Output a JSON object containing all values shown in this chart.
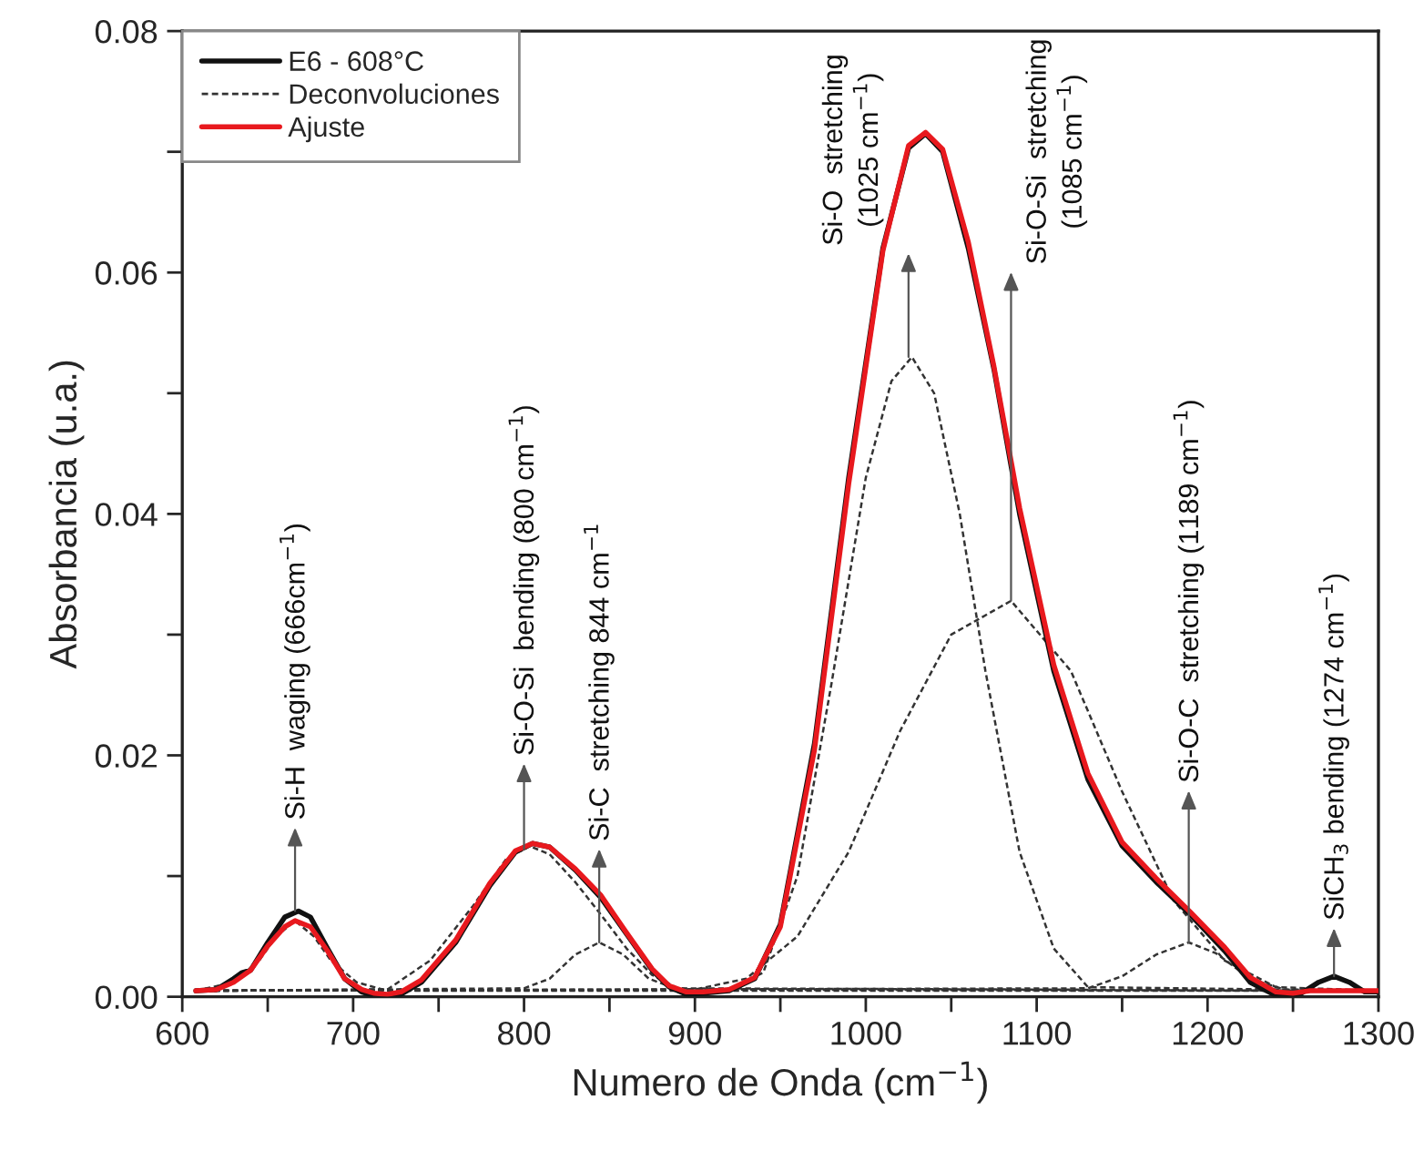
{
  "chart_data": {
    "type": "line",
    "xlabel": "Numero de Onda (cm$^{−1}$)",
    "ylabel": "Absorbancia (u.a.)",
    "xlim": [
      600,
      1300
    ],
    "ylim": [
      0,
      0.08
    ],
    "xticks": [
      600,
      {
        "value": 650,
        "label": null
      },
      700,
      {
        "value": 750,
        "label": null
      },
      800,
      {
        "value": 850,
        "label": null
      },
      900,
      {
        "value": 950,
        "label": null
      },
      1000,
      {
        "value": 1050,
        "label": null
      },
      1100,
      {
        "value": 1150,
        "label": null
      },
      1200,
      {
        "value": 1250,
        "label": null
      },
      1300
    ],
    "yticks": [
      {
        "value": 0,
        "label": "0.00"
      },
      {
        "value": 0.01,
        "label": null
      },
      {
        "value": 0.02,
        "label": "0.02"
      },
      {
        "value": 0.03,
        "label": null
      },
      {
        "value": 0.04,
        "label": "0.04"
      },
      {
        "value": 0.05,
        "label": null
      },
      {
        "value": 0.06,
        "label": "0.06"
      },
      {
        "value": 0.07,
        "label": null
      },
      {
        "value": 0.08,
        "label": "0.08"
      }
    ],
    "grid": false,
    "legend": "top left",
    "series": [
      {
        "name": "E6 - 608°C",
        "color": "#111111",
        "line_style": "solid",
        "x": [
          608,
          620,
          630,
          635,
          640,
          650,
          660,
          668,
          675,
          685,
          695,
          705,
          712,
          720,
          728,
          740,
          760,
          780,
          795,
          805,
          815,
          830,
          845,
          860,
          875,
          885,
          895,
          905,
          920,
          935,
          950,
          970,
          990,
          1010,
          1025,
          1035,
          1045,
          1060,
          1075,
          1090,
          1110,
          1130,
          1150,
          1170,
          1190,
          1210,
          1225,
          1240,
          1247,
          1255,
          1265,
          1274,
          1283,
          1292,
          1300
        ],
        "values": [
          0.0005,
          0.0006,
          0.0015,
          0.002,
          0.0022,
          0.0045,
          0.0066,
          0.0071,
          0.0066,
          0.004,
          0.0015,
          0.0004,
          0.0001,
          0.0,
          0.0002,
          0.0012,
          0.0045,
          0.0092,
          0.012,
          0.0127,
          0.0124,
          0.0105,
          0.0082,
          0.0052,
          0.0022,
          0.0008,
          0.0002,
          0.0003,
          0.0005,
          0.0015,
          0.006,
          0.021,
          0.043,
          0.062,
          0.0703,
          0.0715,
          0.07,
          0.062,
          0.052,
          0.04,
          0.027,
          0.018,
          0.0125,
          0.0095,
          0.0068,
          0.0038,
          0.0012,
          0.0001,
          0.0,
          0.0003,
          0.0012,
          0.0017,
          0.0012,
          0.0004,
          0.0004
        ]
      },
      {
        "name": "Deconvoluciones",
        "color": "#333333",
        "line_style": "dashed",
        "x": [
          608,
          630,
          645,
          655,
          666,
          677,
          687,
          702,
          720,
          1300
        ],
        "values": [
          0.0005,
          0.0012,
          0.003,
          0.005,
          0.0063,
          0.005,
          0.003,
          0.0012,
          0.0005,
          0.0005
        ]
      },
      {
        "color": "#333333",
        "line_style": "dashed",
        "x": [
          608,
          720,
          745,
          770,
          790,
          800,
          803,
          815,
          830,
          845,
          860,
          875,
          890,
          1300
        ],
        "values": [
          0.0005,
          0.0006,
          0.003,
          0.0075,
          0.0115,
          0.0122,
          0.0125,
          0.0118,
          0.0095,
          0.0068,
          0.004,
          0.0018,
          0.0007,
          0.0005
        ]
      },
      {
        "color": "#333333",
        "line_style": "dashed",
        "x": [
          608,
          800,
          815,
          830,
          844,
          858,
          873,
          890,
          1300
        ],
        "values": [
          0.0005,
          0.0007,
          0.0015,
          0.0035,
          0.0045,
          0.0035,
          0.0015,
          0.0006,
          0.0005
        ]
      },
      {
        "color": "#333333",
        "line_style": "dashed",
        "x": [
          608,
          920,
          940,
          960,
          980,
          1000,
          1015,
          1027,
          1040,
          1055,
          1070,
          1090,
          1110,
          1130,
          1300
        ],
        "values": [
          0.0005,
          0.0006,
          0.002,
          0.01,
          0.026,
          0.043,
          0.051,
          0.053,
          0.05,
          0.04,
          0.027,
          0.012,
          0.004,
          0.0008,
          0.0005
        ]
      },
      {
        "color": "#333333",
        "line_style": "dashed",
        "x": [
          608,
          900,
          930,
          960,
          990,
          1020,
          1050,
          1085,
          1120,
          1150,
          1180,
          1210,
          1240,
          1300
        ],
        "values": [
          0.0005,
          0.0006,
          0.0015,
          0.005,
          0.012,
          0.022,
          0.03,
          0.0328,
          0.027,
          0.017,
          0.008,
          0.003,
          0.0008,
          0.0005
        ]
      },
      {
        "color": "#333333",
        "line_style": "dashed",
        "x": [
          608,
          1130,
          1150,
          1170,
          1189,
          1205,
          1225,
          1245,
          1300
        ],
        "values": [
          0.0005,
          0.0007,
          0.0017,
          0.0035,
          0.0045,
          0.0036,
          0.0015,
          0.0006,
          0.0005
        ]
      },
      {
        "name": "Ajuste",
        "color": "#e8191e",
        "line_style": "solid",
        "x": [
          608,
          620,
          630,
          640,
          650,
          660,
          666,
          675,
          685,
          695,
          705,
          712,
          720,
          728,
          740,
          760,
          780,
          795,
          805,
          815,
          830,
          845,
          860,
          875,
          885,
          895,
          905,
          920,
          935,
          950,
          970,
          990,
          1010,
          1025,
          1035,
          1045,
          1060,
          1075,
          1090,
          1110,
          1130,
          1150,
          1170,
          1190,
          1210,
          1225,
          1240,
          1250,
          1260,
          1300
        ],
        "values": [
          0.0005,
          0.0006,
          0.0012,
          0.0022,
          0.0042,
          0.0058,
          0.0063,
          0.0058,
          0.0038,
          0.0015,
          0.0006,
          0.0003,
          0.0002,
          0.0004,
          0.0014,
          0.0047,
          0.0094,
          0.0121,
          0.0127,
          0.0124,
          0.0106,
          0.0084,
          0.0053,
          0.0023,
          0.0009,
          0.0004,
          0.0004,
          0.0006,
          0.0016,
          0.0058,
          0.0205,
          0.0425,
          0.0618,
          0.0705,
          0.0716,
          0.0702,
          0.0625,
          0.0522,
          0.0405,
          0.0275,
          0.0185,
          0.0128,
          0.0098,
          0.007,
          0.0041,
          0.0016,
          0.0004,
          0.0003,
          0.0005,
          0.0005
        ]
      }
    ],
    "annotations": [
      {
        "text": "Si-H  waging (666cm$^{−1}$)",
        "x": 666,
        "y": 0.0071
      },
      {
        "text": "Si-O-Si  bending (800 cm$^{−1}$)",
        "x": 800,
        "y": 0.0122
      },
      {
        "text": "Si-C  stretching 844 cm$^{−1}$",
        "x": 844,
        "y": 0.0045
      },
      {
        "text": "Si-O  stretching\n(1025 cm$^{−1}$)",
        "x": 1025,
        "y": 0.053
      },
      {
        "text": "Si-O-Si  stretching\n(1085 cm$^{−1}$)",
        "x": 1085,
        "y": 0.0328
      },
      {
        "text": "Si-O-C  stretching (1189 cm$^{−1}$)",
        "x": 1189,
        "y": 0.0045
      },
      {
        "text": "SiCH$_{3}$ bending (1274 cm$^{−1}$)",
        "x": 1274,
        "y": 0.0017
      }
    ]
  }
}
